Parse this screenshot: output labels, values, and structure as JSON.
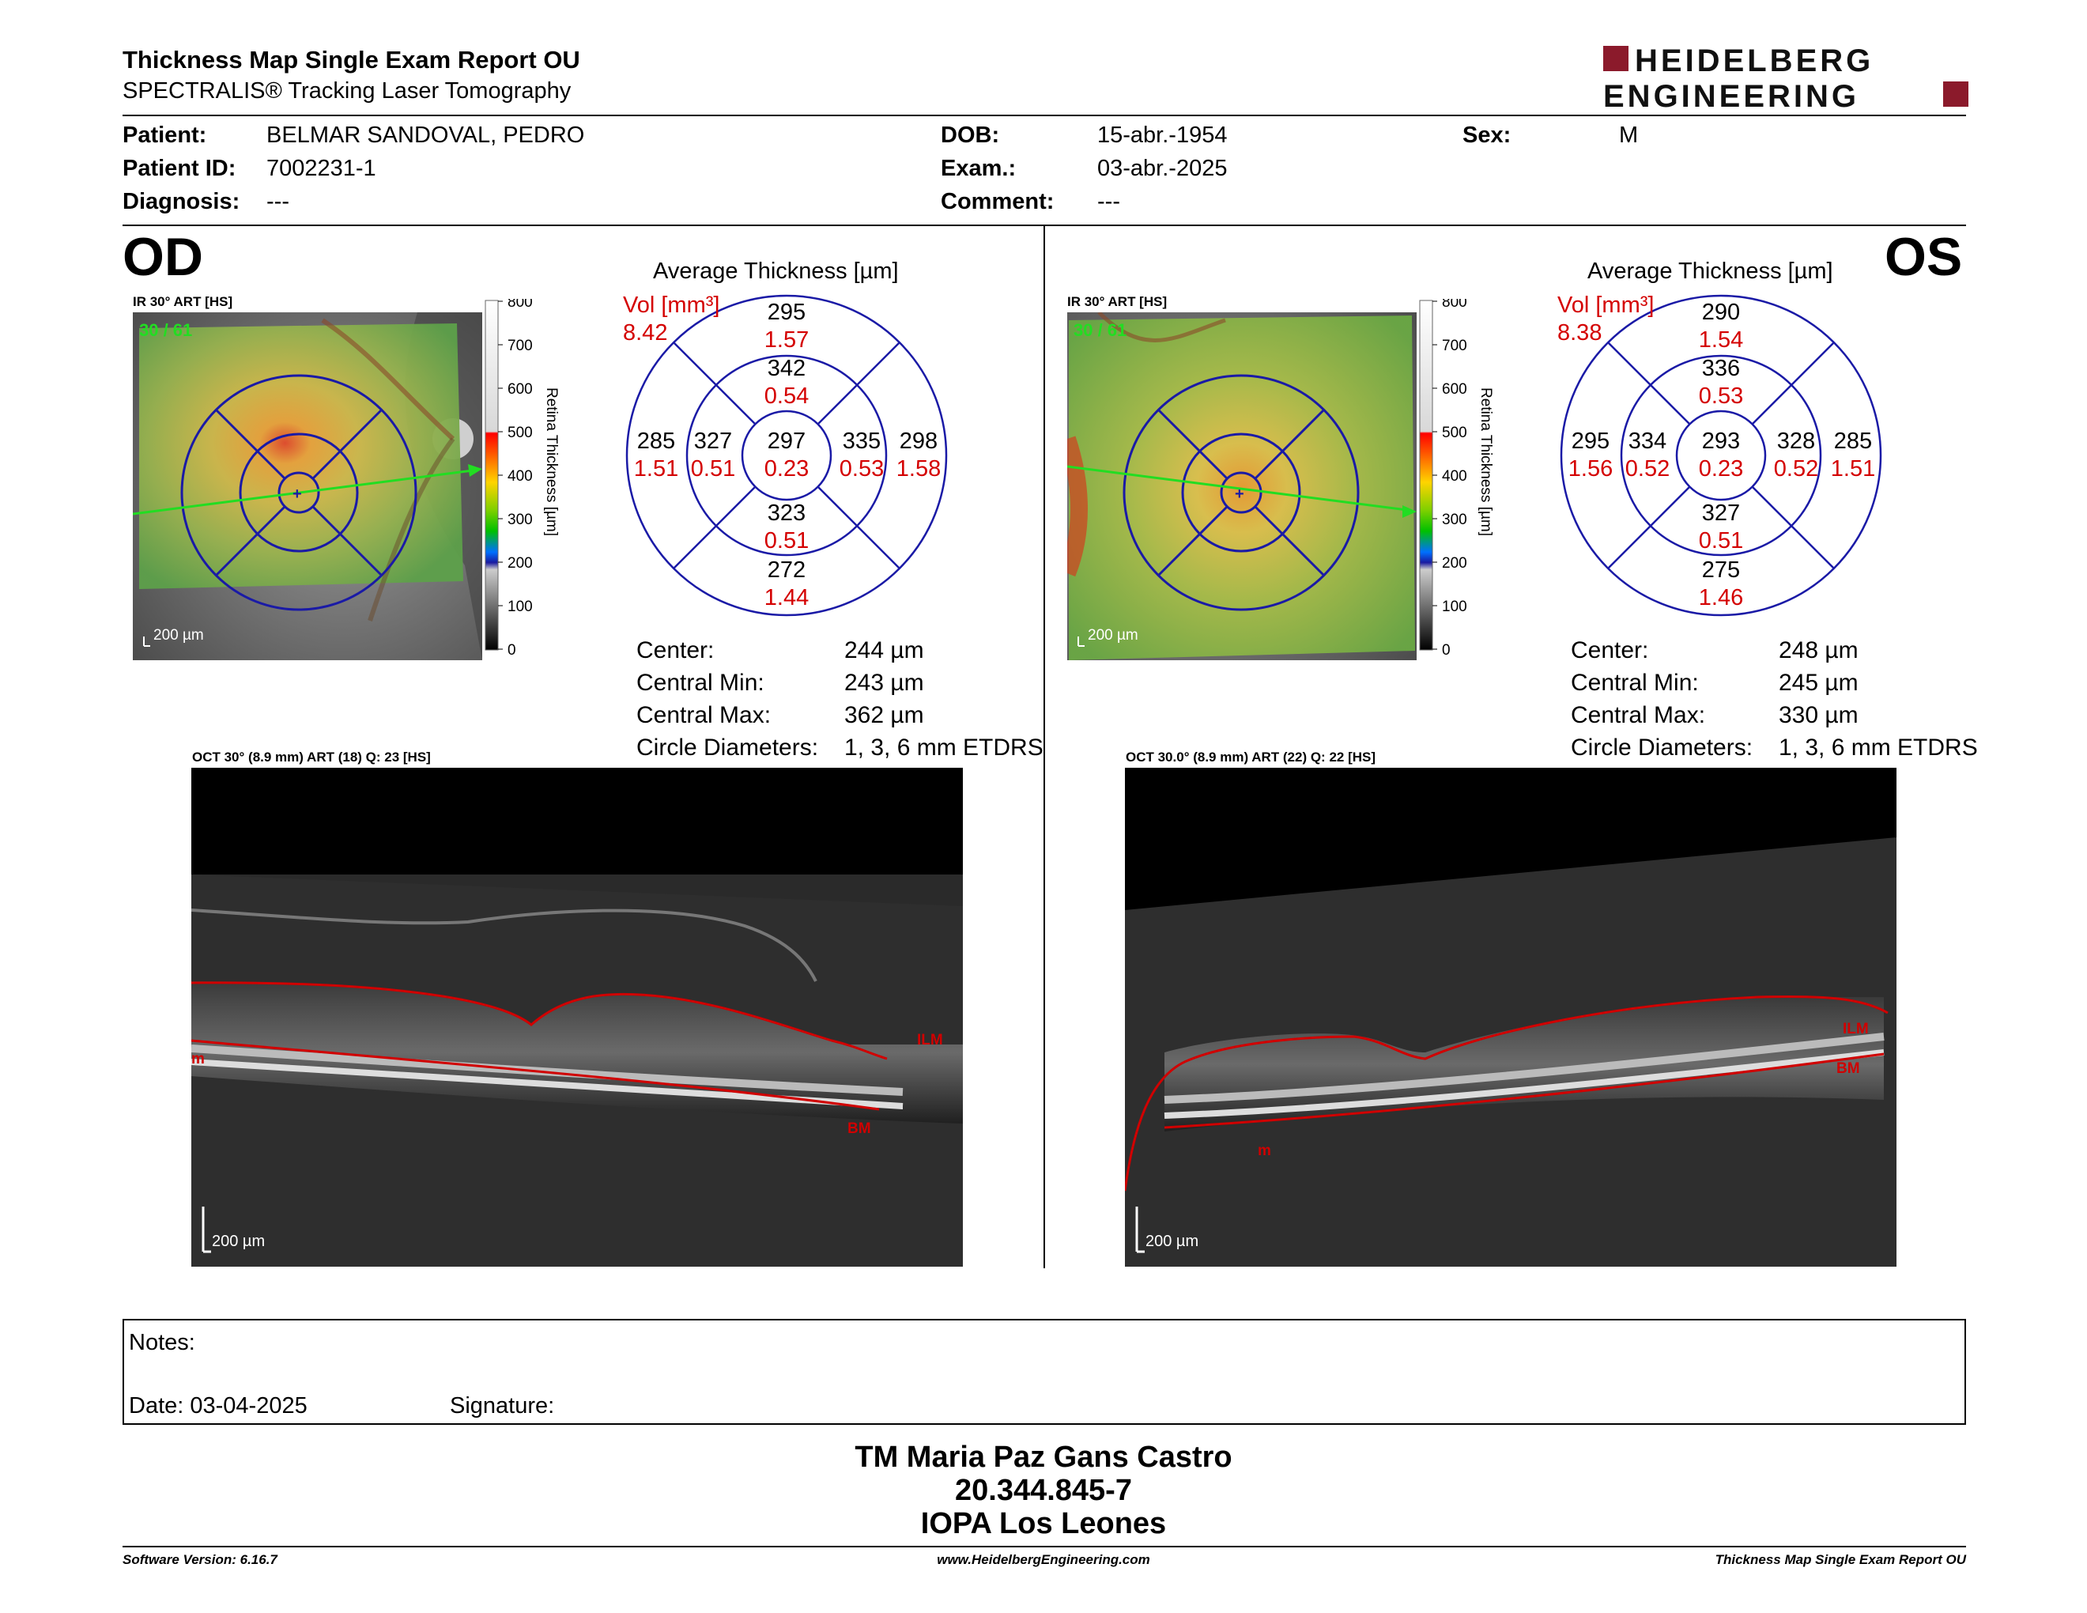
{
  "header": {
    "title": "Thickness Map Single Exam Report OU",
    "subtitle": "SPECTRALIS® Tracking Laser Tomography",
    "logo_line1": "HEIDELBERG",
    "logo_line2": "ENGINEERING"
  },
  "patient": {
    "patient_label": "Patient:",
    "patient_value": "BELMAR SANDOVAL, PEDRO",
    "id_label": "Patient ID:",
    "id_value": "7002231-1",
    "diagnosis_label": "Diagnosis:",
    "diagnosis_value": "---",
    "dob_label": "DOB:",
    "dob_value": "15-abr.-1954",
    "exam_label": "Exam.:",
    "exam_value": "03-abr.-2025",
    "comment_label": "Comment:",
    "comment_value": "---",
    "sex_label": "Sex:",
    "sex_value": "M"
  },
  "od": {
    "eye": "OD",
    "ir_label": "IR 30° ART [HS]",
    "ir_counter": "30 / 61",
    "scale_bar": "200 µm",
    "colorbar_ticks": [
      "800",
      "700",
      "600",
      "500",
      "400",
      "300",
      "200",
      "100",
      "0"
    ],
    "colorbar_title": "Retina Thickness [µm]",
    "avg_title": "Average Thickness [µm]",
    "vol_label": "Vol [mm³]",
    "vol_value": "8.42",
    "sectors": {
      "outer_sup": [
        "295",
        "1.57"
      ],
      "inner_sup": [
        "342",
        "0.54"
      ],
      "outer_temp": [
        "285",
        "1.51"
      ],
      "inner_temp": [
        "327",
        "0.51"
      ],
      "center": [
        "297",
        "0.23"
      ],
      "inner_nas": [
        "335",
        "0.53"
      ],
      "outer_nas": [
        "298",
        "1.58"
      ],
      "inner_inf": [
        "323",
        "0.51"
      ],
      "outer_inf": [
        "272",
        "1.44"
      ]
    },
    "stats": [
      {
        "label": "Center:",
        "value": "244 µm"
      },
      {
        "label": "Central Min:",
        "value": "243 µm"
      },
      {
        "label": "Central Max:",
        "value": "362 µm"
      },
      {
        "label": "Circle Diameters:",
        "value": "1, 3, 6 mm ETDRS"
      }
    ],
    "oct_label": "OCT 30° (8.9 mm) ART (18) Q: 23 [HS]",
    "oct_scale": "200 µm",
    "oct_ilm": "ILM",
    "oct_bm": "BM",
    "oct_edge": "m"
  },
  "os": {
    "eye": "OS",
    "ir_label": "IR 30° ART [HS]",
    "ir_counter": "30 / 61",
    "scale_bar": "200 µm",
    "colorbar_ticks": [
      "800",
      "700",
      "600",
      "500",
      "400",
      "300",
      "200",
      "100",
      "0"
    ],
    "colorbar_title": "Retina Thickness [µm]",
    "avg_title": "Average Thickness [µm]",
    "vol_label": "Vol [mm³]",
    "vol_value": "8.38",
    "sectors": {
      "outer_sup": [
        "290",
        "1.54"
      ],
      "inner_sup": [
        "336",
        "0.53"
      ],
      "outer_temp": [
        "295",
        "1.56"
      ],
      "inner_temp": [
        "334",
        "0.52"
      ],
      "center": [
        "293",
        "0.23"
      ],
      "inner_nas": [
        "328",
        "0.52"
      ],
      "outer_nas": [
        "285",
        "1.51"
      ],
      "inner_inf": [
        "327",
        "0.51"
      ],
      "outer_inf": [
        "275",
        "1.46"
      ]
    },
    "stats": [
      {
        "label": "Center:",
        "value": "248 µm"
      },
      {
        "label": "Central Min:",
        "value": "245 µm"
      },
      {
        "label": "Central Max:",
        "value": "330 µm"
      },
      {
        "label": "Circle Diameters:",
        "value": "1, 3, 6 mm ETDRS"
      }
    ],
    "oct_label": "OCT 30.0° (8.9 mm) ART (22) Q: 22 [HS]",
    "oct_scale": "200 µm",
    "oct_ilm": "ILM",
    "oct_bm": "BM",
    "oct_edge": "m"
  },
  "notes": {
    "notes_label": "Notes:",
    "date_label": "Date: 03-04-2025",
    "signature_label": "Signature:"
  },
  "signatory": {
    "name": "TM Maria Paz Gans Castro",
    "rut": "20.344.845-7",
    "institution": "IOPA Los Leones"
  },
  "footer": {
    "software": "Software Version: 6.16.7",
    "website": "www.HeidelbergEngineering.com",
    "report": "Thickness Map Single Exam Report OU"
  },
  "colors": {
    "etdrs_grid": "#1a1aa6",
    "volume_text": "#d40000",
    "seg_line": "#d00000",
    "scan_arrow": "#22dd22",
    "logo_red": "#8b1a2b"
  }
}
